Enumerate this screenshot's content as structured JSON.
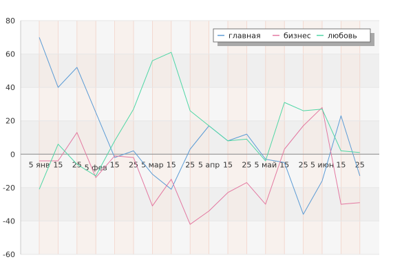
{
  "chart_data": {
    "type": "line",
    "title": "",
    "xlabel": "",
    "ylabel": "",
    "ylim": [
      -60,
      80
    ],
    "y_ticks": [
      -60,
      -40,
      -20,
      0,
      20,
      40,
      60,
      80
    ],
    "grid": "horizontal bands, alternating vertical column shading",
    "legend_placement": "top-right",
    "x_labels": [
      {
        "pos": 0,
        "text": "5 янв"
      },
      {
        "pos": 1,
        "text": "15"
      },
      {
        "pos": 2,
        "text": "25"
      },
      {
        "pos": 3,
        "text": "5 фев"
      },
      {
        "pos": 4,
        "text": "15"
      },
      {
        "pos": 5,
        "text": "25"
      },
      {
        "pos": 6,
        "text": "5 мар"
      },
      {
        "pos": 7,
        "text": "15"
      },
      {
        "pos": 8,
        "text": "25"
      },
      {
        "pos": 9,
        "text": "5 апр"
      },
      {
        "pos": 10,
        "text": "15"
      },
      {
        "pos": 11,
        "text": "25"
      },
      {
        "pos": 12,
        "text": "5 май"
      },
      {
        "pos": 13,
        "text": "15"
      },
      {
        "pos": 14,
        "text": "25"
      },
      {
        "pos": 15,
        "text": "5 июн"
      },
      {
        "pos": 16,
        "text": "15"
      },
      {
        "pos": 17,
        "text": "25"
      }
    ],
    "series": [
      {
        "name": "главная",
        "color": "#5b9bd5",
        "points": [
          [
            0,
            70
          ],
          [
            1,
            40
          ],
          [
            2,
            52
          ],
          [
            3,
            25
          ],
          [
            4,
            -2
          ],
          [
            5,
            2
          ],
          [
            6,
            -12
          ],
          [
            7,
            -21
          ],
          [
            8,
            3
          ],
          [
            9,
            17
          ],
          [
            10,
            8
          ],
          [
            11,
            12
          ],
          [
            12,
            -3
          ],
          [
            13,
            -5
          ],
          [
            14,
            -36
          ],
          [
            15,
            -16
          ],
          [
            16,
            23
          ],
          [
            17,
            -13
          ]
        ]
      },
      {
        "name": "бизнес",
        "color": "#e377a0",
        "points": [
          [
            0,
            -4
          ],
          [
            1,
            -4
          ],
          [
            2,
            13
          ],
          [
            3,
            -14
          ],
          [
            4,
            -1
          ],
          [
            5,
            -2
          ],
          [
            6,
            -31
          ],
          [
            7,
            -15
          ],
          [
            8,
            -42
          ],
          [
            9,
            -34
          ],
          [
            10,
            -23
          ],
          [
            11,
            -17
          ],
          [
            12,
            -30
          ],
          [
            13,
            3
          ],
          [
            14,
            17
          ],
          [
            15,
            28
          ],
          [
            16,
            -30
          ],
          [
            17,
            -29
          ]
        ]
      },
      {
        "name": "любовь",
        "color": "#4dd6a4",
        "points": [
          [
            0,
            -21
          ],
          [
            1,
            6
          ],
          [
            2,
            -6
          ],
          [
            3,
            -13
          ],
          [
            4,
            8
          ],
          [
            5,
            27
          ],
          [
            6,
            56
          ],
          [
            7,
            61
          ],
          [
            8,
            26
          ],
          [
            9,
            17
          ],
          [
            10,
            8
          ],
          [
            11,
            9
          ],
          [
            12,
            -4
          ],
          [
            13,
            31
          ],
          [
            14,
            26
          ],
          [
            15,
            27
          ],
          [
            16,
            2
          ],
          [
            17,
            1
          ]
        ]
      }
    ]
  }
}
